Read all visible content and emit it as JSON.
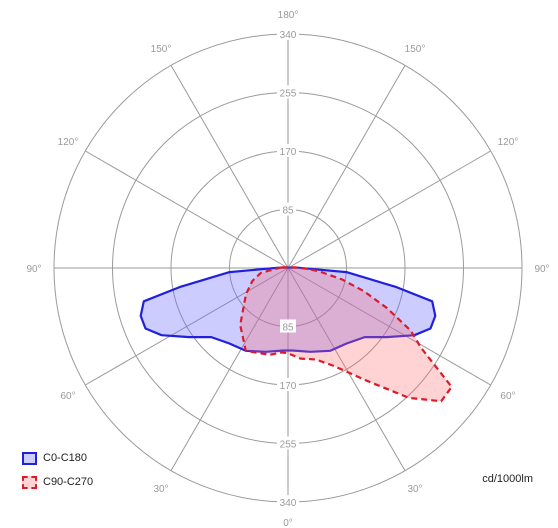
{
  "chart_data": {
    "type": "polar-photometric",
    "unit": "cd/1000lm",
    "rmax": 340,
    "ring_labels": [
      "85",
      "170",
      "255",
      "340"
    ],
    "angle_labels": {
      "top": "180°",
      "bottom": "0°",
      "left": [
        "150°",
        "120°",
        "90°",
        "60°",
        "30°"
      ],
      "right": [
        "150°",
        "120°",
        "90°",
        "60°",
        "30°"
      ]
    },
    "grid": true,
    "legend_position": "bottom-left",
    "series": [
      {
        "name": "C0-C180",
        "color": "#2020dd",
        "fill": "rgba(110,110,255,0.35)",
        "dash": false,
        "points": [
          {
            "deg": 92,
            "value": 14
          },
          {
            "deg": 86,
            "value": 85
          },
          {
            "deg": 80,
            "value": 160
          },
          {
            "deg": 77,
            "value": 215
          },
          {
            "deg": 72,
            "value": 225
          },
          {
            "deg": 67,
            "value": 225
          },
          {
            "deg": 62,
            "value": 208
          },
          {
            "deg": 55,
            "value": 175
          },
          {
            "deg": 48,
            "value": 150
          },
          {
            "deg": 38,
            "value": 139
          },
          {
            "deg": 27,
            "value": 135
          },
          {
            "deg": 15,
            "value": 126
          },
          {
            "deg": 3,
            "value": 120
          },
          {
            "deg": -3,
            "value": 120
          },
          {
            "deg": -15,
            "value": 126
          },
          {
            "deg": -27,
            "value": 135
          },
          {
            "deg": -38,
            "value": 139
          },
          {
            "deg": -48,
            "value": 150
          },
          {
            "deg": -55,
            "value": 175
          },
          {
            "deg": -62,
            "value": 208
          },
          {
            "deg": -67,
            "value": 225
          },
          {
            "deg": -72,
            "value": 225
          },
          {
            "deg": -77,
            "value": 215
          },
          {
            "deg": -80,
            "value": 160
          },
          {
            "deg": -86,
            "value": 85
          },
          {
            "deg": -92,
            "value": 14
          }
        ]
      },
      {
        "name": "C90-C270",
        "color": "#dd1a2a",
        "fill": "rgba(255,110,110,0.30)",
        "dash": true,
        "points": [
          {
            "deg": -95,
            "value": 10
          },
          {
            "deg": -80,
            "value": 40
          },
          {
            "deg": -70,
            "value": 55
          },
          {
            "deg": -58,
            "value": 72
          },
          {
            "deg": -40,
            "value": 108
          },
          {
            "deg": -27,
            "value": 135
          },
          {
            "deg": -12,
            "value": 129
          },
          {
            "deg": -4,
            "value": 123
          },
          {
            "deg": 0,
            "value": 124
          },
          {
            "deg": 8,
            "value": 133
          },
          {
            "deg": 17,
            "value": 139
          },
          {
            "deg": 25,
            "value": 157
          },
          {
            "deg": 35,
            "value": 200
          },
          {
            "deg": 43,
            "value": 258
          },
          {
            "deg": 49,
            "value": 295
          },
          {
            "deg": 54,
            "value": 294
          },
          {
            "deg": 59,
            "value": 226
          },
          {
            "deg": 63,
            "value": 200
          },
          {
            "deg": 68,
            "value": 155
          },
          {
            "deg": 73,
            "value": 115
          },
          {
            "deg": 78,
            "value": 80
          },
          {
            "deg": 84,
            "value": 45
          },
          {
            "deg": 88,
            "value": 26
          },
          {
            "deg": 95,
            "value": 10
          }
        ]
      }
    ]
  }
}
